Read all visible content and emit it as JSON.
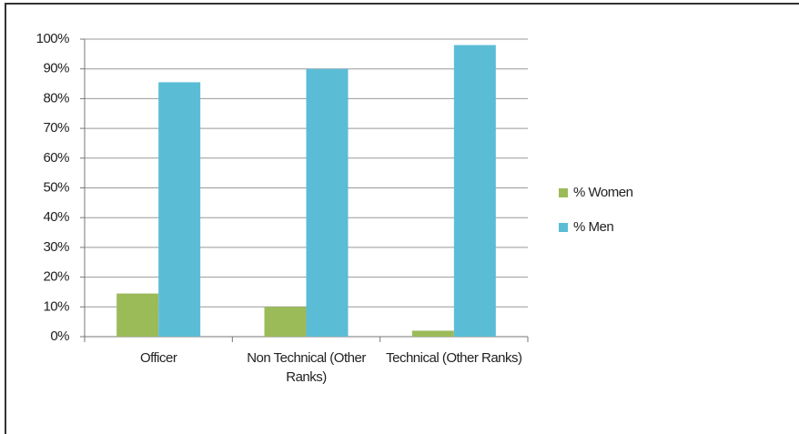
{
  "chart_data": {
    "type": "bar",
    "categories": [
      "Officer",
      "Non Technical (Other Ranks)",
      "Technical (Other Ranks)"
    ],
    "series": [
      {
        "name": "% Women",
        "color": "#9bbb59",
        "values": [
          14.5,
          10,
          2
        ]
      },
      {
        "name": "% Men",
        "color": "#5bbcd6",
        "values": [
          85.5,
          90,
          98
        ]
      }
    ],
    "ylim": [
      0,
      100
    ],
    "yticks": [
      {
        "value": 0,
        "label": "0%"
      },
      {
        "value": 10,
        "label": "10%"
      },
      {
        "value": 20,
        "label": "20%"
      },
      {
        "value": 30,
        "label": "30%"
      },
      {
        "value": 40,
        "label": "40%"
      },
      {
        "value": 50,
        "label": "50%"
      },
      {
        "value": 60,
        "label": "60%"
      },
      {
        "value": 70,
        "label": "70%"
      },
      {
        "value": 80,
        "label": "80%"
      },
      {
        "value": 90,
        "label": "90%"
      },
      {
        "value": 100,
        "label": "100%"
      }
    ],
    "grid": true,
    "legend": "right"
  }
}
